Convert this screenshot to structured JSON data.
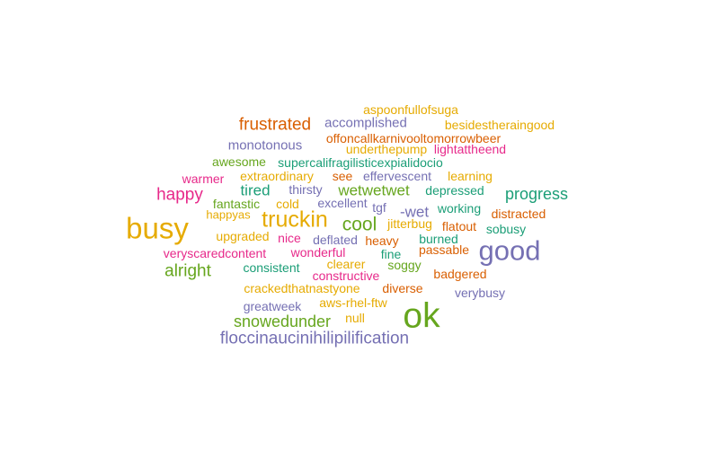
{
  "palette": {
    "teal": "#1b9e77",
    "orange": "#d95f02",
    "purple": "#7570b3",
    "pink": "#e7298a",
    "green": "#66a61e",
    "gold": "#e6ab02"
  },
  "words": [
    {
      "text": "aspoonfullofsuga",
      "color": "gold"
    },
    {
      "text": "frustrated",
      "color": "orange"
    },
    {
      "text": "accomplished",
      "color": "purple"
    },
    {
      "text": "besidestheraingood",
      "color": "gold"
    },
    {
      "text": "offoncallkarnivooltomorrowbeer",
      "color": "orange"
    },
    {
      "text": "monotonous",
      "color": "purple"
    },
    {
      "text": "underthepump",
      "color": "gold"
    },
    {
      "text": "lightattheend",
      "color": "pink"
    },
    {
      "text": "awesome",
      "color": "green"
    },
    {
      "text": "supercalifragilisticexpialidocio",
      "color": "teal"
    },
    {
      "text": "warmer",
      "color": "pink"
    },
    {
      "text": "extraordinary",
      "color": "gold"
    },
    {
      "text": "see",
      "color": "orange"
    },
    {
      "text": "effervescent",
      "color": "purple"
    },
    {
      "text": "learning",
      "color": "gold"
    },
    {
      "text": "happy",
      "color": "pink"
    },
    {
      "text": "tired",
      "color": "teal"
    },
    {
      "text": "thirsty",
      "color": "purple"
    },
    {
      "text": "wetwetwet",
      "color": "green"
    },
    {
      "text": "depressed",
      "color": "teal"
    },
    {
      "text": "progress",
      "color": "teal"
    },
    {
      "text": "fantastic",
      "color": "green"
    },
    {
      "text": "cold",
      "color": "gold"
    },
    {
      "text": "excellent",
      "color": "purple"
    },
    {
      "text": "tgf",
      "color": "purple"
    },
    {
      "text": "-wet",
      "color": "purple"
    },
    {
      "text": "working",
      "color": "teal"
    },
    {
      "text": "distracted",
      "color": "orange"
    },
    {
      "text": "busy",
      "color": "gold"
    },
    {
      "text": "happyas",
      "color": "gold"
    },
    {
      "text": "truckin",
      "color": "gold"
    },
    {
      "text": "cool",
      "color": "green"
    },
    {
      "text": "jitterbug",
      "color": "gold"
    },
    {
      "text": "flatout",
      "color": "orange"
    },
    {
      "text": "sobusy",
      "color": "teal"
    },
    {
      "text": "upgraded",
      "color": "gold"
    },
    {
      "text": "nice",
      "color": "pink"
    },
    {
      "text": "deflated",
      "color": "purple"
    },
    {
      "text": "heavy",
      "color": "orange"
    },
    {
      "text": "burned",
      "color": "teal"
    },
    {
      "text": "good",
      "color": "purple"
    },
    {
      "text": "veryscaredcontent",
      "color": "pink"
    },
    {
      "text": "wonderful",
      "color": "pink"
    },
    {
      "text": "fine",
      "color": "teal"
    },
    {
      "text": "passable",
      "color": "orange"
    },
    {
      "text": "alright",
      "color": "green"
    },
    {
      "text": "consistent",
      "color": "teal"
    },
    {
      "text": "clearer",
      "color": "gold"
    },
    {
      "text": "soggy",
      "color": "green"
    },
    {
      "text": "constructive",
      "color": "pink"
    },
    {
      "text": "badgered",
      "color": "orange"
    },
    {
      "text": "crackedthatnastyone",
      "color": "gold"
    },
    {
      "text": "diverse",
      "color": "orange"
    },
    {
      "text": "verybusy",
      "color": "purple"
    },
    {
      "text": "greatweek",
      "color": "purple"
    },
    {
      "text": "aws-rhel-ftw",
      "color": "gold"
    },
    {
      "text": "ok",
      "color": "green"
    },
    {
      "text": "snowedunder",
      "color": "green"
    },
    {
      "text": "null",
      "color": "gold"
    },
    {
      "text": "floccinaucinihilipilification",
      "color": "purple"
    }
  ]
}
